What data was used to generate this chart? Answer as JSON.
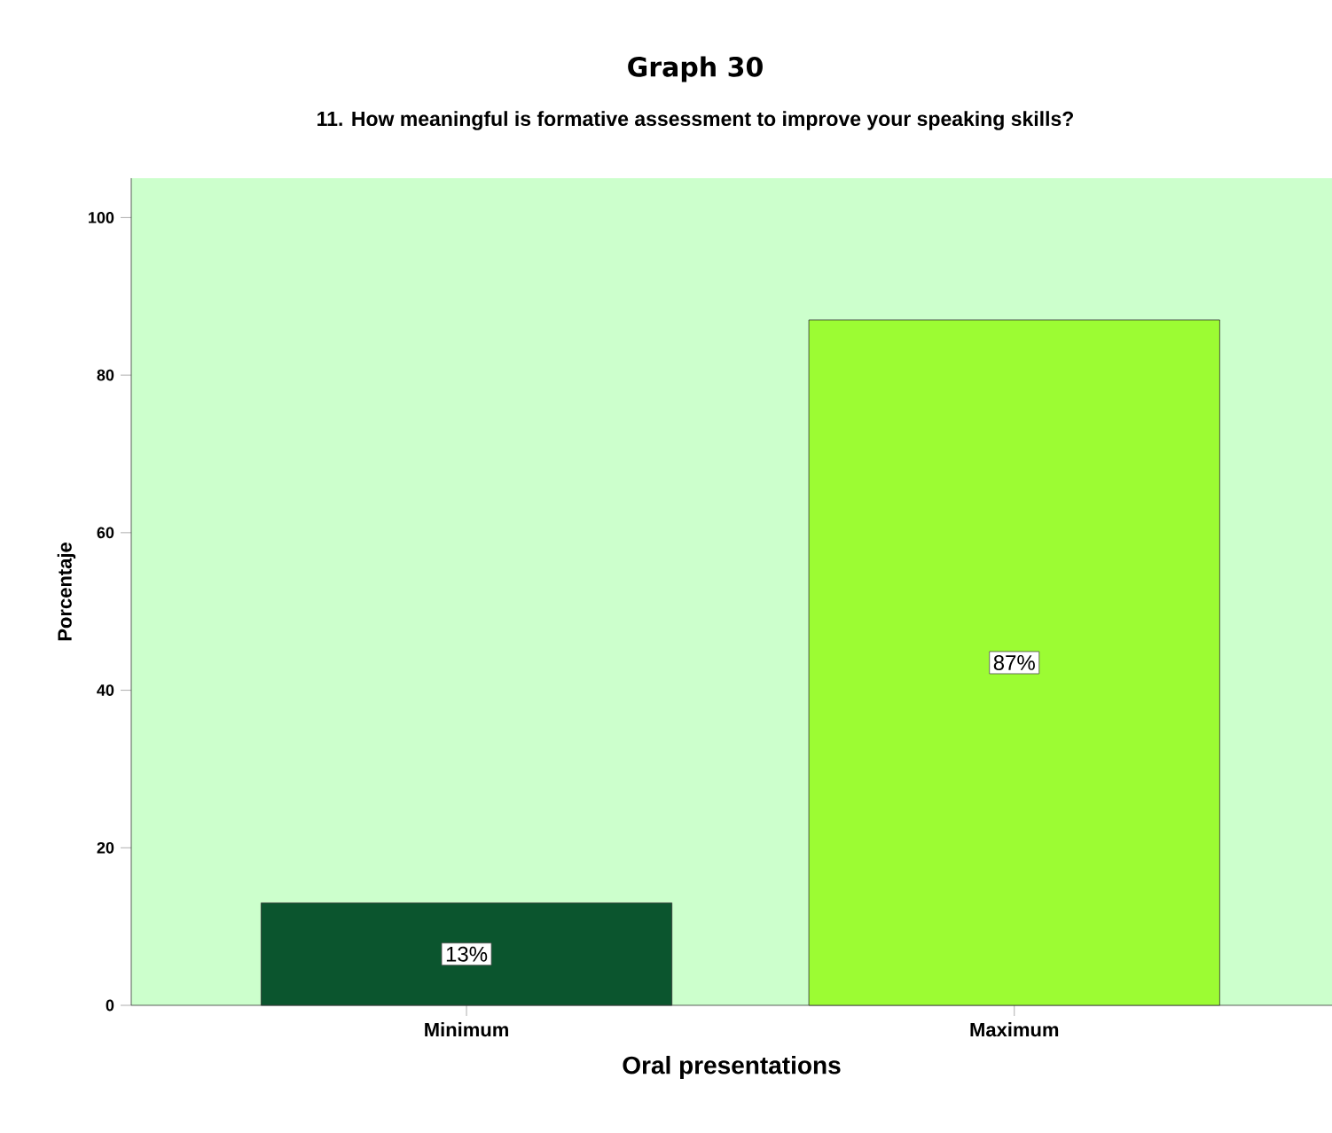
{
  "chart_data": {
    "type": "bar",
    "title": "Graph 30",
    "subtitle": "11.  How meaningful is formative assessment to improve your speaking skills?",
    "xlabel": "Oral presentations",
    "ylabel": "Porcentaje",
    "categories": [
      "Minimum",
      "Maximum"
    ],
    "values": [
      13,
      87
    ],
    "colors": [
      "#0b552e",
      "#9cfc33"
    ],
    "value_labels": [
      "13%",
      "87%"
    ],
    "ylim": [
      0,
      105
    ],
    "yticks": [
      0,
      20,
      40,
      60,
      80,
      100
    ]
  }
}
